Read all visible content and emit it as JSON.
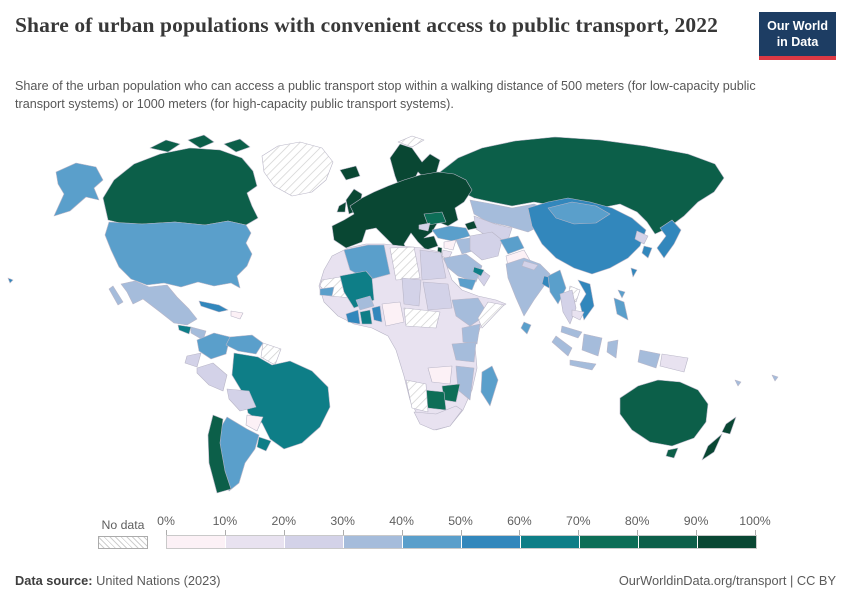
{
  "header": {
    "title": "Share of urban populations with convenient access to public transport, 2022",
    "logo": {
      "line1": "Our World",
      "line2": "in Data",
      "bg_color": "#1d3d63",
      "stripe_color": "#dc3944"
    }
  },
  "subtitle": "Share of the urban population who can access a public transport stop within a walking distance of 500 meters (for low-capacity public transport systems) or 1000 meters (for high-capacity public transport systems).",
  "chart_data": {
    "type": "choropleth_map",
    "title": "Share of urban populations with convenient access to public transport",
    "year": "2022",
    "unit": "% of urban population",
    "legend": {
      "no_data_label": "No data",
      "no_data_hatch_color": "#cfcfcf",
      "tick_labels": [
        "0%",
        "10%",
        "20%",
        "30%",
        "40%",
        "50%",
        "60%",
        "70%",
        "80%",
        "90%",
        "100%"
      ],
      "bins": [
        {
          "range": "0-10%",
          "color": "#fcf1f6"
        },
        {
          "range": "10-20%",
          "color": "#e8e2f0"
        },
        {
          "range": "20-30%",
          "color": "#d3d2e8"
        },
        {
          "range": "30-40%",
          "color": "#a5bcdb"
        },
        {
          "range": "40-50%",
          "color": "#5a9fcb"
        },
        {
          "range": "50-60%",
          "color": "#3287bc"
        },
        {
          "range": "60-70%",
          "color": "#0e7e87"
        },
        {
          "range": "70-80%",
          "color": "#0d6e57"
        },
        {
          "range": "80-90%",
          "color": "#0c5f49"
        },
        {
          "range": "90-100%",
          "color": "#094733"
        }
      ]
    },
    "regions": [
      {
        "id": "canada",
        "name": "Canada",
        "value": "80-90%",
        "bin": 8
      },
      {
        "id": "greenland",
        "name": "Greenland",
        "value": "No data",
        "bin": "no_data"
      },
      {
        "id": "alaska",
        "name": "Alaska (United States)",
        "value": "40-50%",
        "bin": 4
      },
      {
        "id": "united-states",
        "name": "United States",
        "value": "40-50%",
        "bin": 4
      },
      {
        "id": "mexico",
        "name": "Mexico",
        "value": "30-40%",
        "bin": 3
      },
      {
        "id": "guatemala",
        "name": "Guatemala",
        "value": "60-70%",
        "bin": 6
      },
      {
        "id": "honduras-nicaragua",
        "name": "Honduras / Nicaragua",
        "value": "30-40%",
        "bin": 3
      },
      {
        "id": "costa-rica-panama",
        "name": "Costa Rica / Panama",
        "value": "40-50%",
        "bin": 4
      },
      {
        "id": "cuba",
        "name": "Cuba",
        "value": "50-60%",
        "bin": 5
      },
      {
        "id": "hispaniola",
        "name": "Hispaniola",
        "value": "0-10%",
        "bin": 0
      },
      {
        "id": "colombia",
        "name": "Colombia",
        "value": "40-50%",
        "bin": 4
      },
      {
        "id": "venezuela",
        "name": "Venezuela",
        "value": "40-50%",
        "bin": 4
      },
      {
        "id": "guianas",
        "name": "Guyana / Suriname",
        "value": "No data",
        "bin": "no_data"
      },
      {
        "id": "ecuador",
        "name": "Ecuador",
        "value": "20-30%",
        "bin": 2
      },
      {
        "id": "peru",
        "name": "Peru",
        "value": "20-30%",
        "bin": 2
      },
      {
        "id": "brazil",
        "name": "Brazil",
        "value": "60-70%",
        "bin": 6
      },
      {
        "id": "bolivia",
        "name": "Bolivia",
        "value": "20-30%",
        "bin": 2
      },
      {
        "id": "paraguay",
        "name": "Paraguay",
        "value": "0-10%",
        "bin": 0
      },
      {
        "id": "argentina",
        "name": "Argentina",
        "value": "40-50%",
        "bin": 4
      },
      {
        "id": "chile",
        "name": "Chile",
        "value": "80-90%",
        "bin": 8
      },
      {
        "id": "uruguay",
        "name": "Uruguay",
        "value": "60-70%",
        "bin": 6
      },
      {
        "id": "iceland",
        "name": "Iceland",
        "value": "90-100%",
        "bin": 9
      },
      {
        "id": "united-kingdom",
        "name": "United Kingdom",
        "value": "90-100%",
        "bin": 9
      },
      {
        "id": "ireland",
        "name": "Ireland",
        "value": "90-100%",
        "bin": 9
      },
      {
        "id": "scandinavia",
        "name": "Norway / Sweden / Finland",
        "value": "90-100%",
        "bin": 9
      },
      {
        "id": "svalbard",
        "name": "Svalbard",
        "value": "No data",
        "bin": "no_data"
      },
      {
        "id": "europe",
        "name": "Western & Central Europe",
        "value": "90-100%",
        "bin": 9
      },
      {
        "id": "romania-bulgaria",
        "name": "Romania",
        "value": "70-80%",
        "bin": 7
      },
      {
        "id": "balkans-patch",
        "name": "Albania / North Macedonia",
        "value": "20-30%",
        "bin": 2
      },
      {
        "id": "russia",
        "name": "Russia",
        "value": "80-90%",
        "bin": 8
      },
      {
        "id": "turkey",
        "name": "Turkey",
        "value": "40-50%",
        "bin": 4
      },
      {
        "id": "azerbaijan",
        "name": "Azerbaijan",
        "value": "90-100%",
        "bin": 9
      },
      {
        "id": "kazakhstan",
        "name": "Kazakhstan",
        "value": "30-40%",
        "bin": 3
      },
      {
        "id": "central-asia",
        "name": "Uzbekistan / Turkmenistan",
        "value": "20-30%",
        "bin": 2
      },
      {
        "id": "iran",
        "name": "Iran",
        "value": "20-30%",
        "bin": 2
      },
      {
        "id": "afghanistan",
        "name": "Afghanistan",
        "value": "40-50%",
        "bin": 4
      },
      {
        "id": "pakistan",
        "name": "Pakistan",
        "value": "0-10%",
        "bin": 0
      },
      {
        "id": "iraq",
        "name": "Iraq",
        "value": "30-40%",
        "bin": 3
      },
      {
        "id": "syria",
        "name": "Syria",
        "value": "0-10%",
        "bin": 0
      },
      {
        "id": "israel",
        "name": "Israel",
        "value": "90-100%",
        "bin": 9
      },
      {
        "id": "jordan",
        "name": "Jordan",
        "value": "10-20%",
        "bin": 1
      },
      {
        "id": "saudi-arabia",
        "name": "Saudi Arabia",
        "value": "30-40%",
        "bin": 3
      },
      {
        "id": "yemen",
        "name": "Yemen",
        "value": "40-50%",
        "bin": 4
      },
      {
        "id": "oman",
        "name": "Oman",
        "value": "20-30%",
        "bin": 2
      },
      {
        "id": "qatar-uae",
        "name": "Qatar / United Arab Emirates",
        "value": "60-70%",
        "bin": 6
      },
      {
        "id": "india",
        "name": "India",
        "value": "30-40%",
        "bin": 3
      },
      {
        "id": "nepal",
        "name": "Nepal",
        "value": "20-30%",
        "bin": 2
      },
      {
        "id": "sri-lanka",
        "name": "Sri Lanka",
        "value": "40-50%",
        "bin": 4
      },
      {
        "id": "bangladesh",
        "name": "Bangladesh",
        "value": "50-60%",
        "bin": 5
      },
      {
        "id": "china",
        "name": "China",
        "value": "50-60%",
        "bin": 5
      },
      {
        "id": "mongolia",
        "name": "Mongolia",
        "value": "40-50%",
        "bin": 4
      },
      {
        "id": "north-korea",
        "name": "North Korea",
        "value": "20-30%",
        "bin": 2
      },
      {
        "id": "south-korea",
        "name": "South Korea",
        "value": "50-60%",
        "bin": 5
      },
      {
        "id": "japan",
        "name": "Japan",
        "value": "50-60%",
        "bin": 5
      },
      {
        "id": "taiwan",
        "name": "Taiwan",
        "value": "50-60%",
        "bin": 5
      },
      {
        "id": "myanmar",
        "name": "Myanmar",
        "value": "40-50%",
        "bin": 4
      },
      {
        "id": "laos",
        "name": "Laos",
        "value": "No data",
        "bin": "no_data"
      },
      {
        "id": "thailand",
        "name": "Thailand",
        "value": "20-30%",
        "bin": 2
      },
      {
        "id": "vietnam",
        "name": "Vietnam",
        "value": "50-60%",
        "bin": 5
      },
      {
        "id": "cambodia",
        "name": "Cambodia",
        "value": "10-20%",
        "bin": 1
      },
      {
        "id": "malaysia",
        "name": "Malaysia",
        "value": "30-40%",
        "bin": 3
      },
      {
        "id": "indonesia",
        "name": "Indonesia",
        "value": "30-40%",
        "bin": 3
      },
      {
        "id": "philippines",
        "name": "Philippines",
        "value": "40-50%",
        "bin": 4
      },
      {
        "id": "papua-new-guinea",
        "name": "Papua New Guinea",
        "value": "10-20%",
        "bin": 1
      },
      {
        "id": "pacific-islands",
        "name": "Pacific islands",
        "value": "30-40%",
        "bin": 3
      },
      {
        "id": "hawaii",
        "name": "Hawaii (United States)",
        "value": "50-60%",
        "bin": 5
      },
      {
        "id": "africa-base",
        "name": "Central Africa (Niger, DR Congo, Angola region)",
        "value": "10-20%",
        "bin": 1
      },
      {
        "id": "algeria",
        "name": "Algeria",
        "value": "40-50%",
        "bin": 4
      },
      {
        "id": "libya",
        "name": "Libya",
        "value": "No data",
        "bin": "no_data"
      },
      {
        "id": "egypt",
        "name": "Egypt",
        "value": "20-30%",
        "bin": 2
      },
      {
        "id": "mauritania",
        "name": "Mauritania / Western Sahara",
        "value": "No data",
        "bin": "no_data"
      },
      {
        "id": "mali",
        "name": "Mali",
        "value": "60-70%",
        "bin": 6
      },
      {
        "id": "burkina-faso",
        "name": "Burkina Faso",
        "value": "30-40%",
        "bin": 3
      },
      {
        "id": "senegal",
        "name": "Senegal",
        "value": "40-50%",
        "bin": 4
      },
      {
        "id": "ivory-coast",
        "name": "Côte d'Ivoire",
        "value": "50-60%",
        "bin": 5
      },
      {
        "id": "ghana",
        "name": "Ghana",
        "value": "60-70%",
        "bin": 6
      },
      {
        "id": "togo-benin",
        "name": "Togo / Benin",
        "value": "50-60%",
        "bin": 5
      },
      {
        "id": "nigeria",
        "name": "Nigeria",
        "value": "0-10%",
        "bin": 0
      },
      {
        "id": "chad",
        "name": "Chad",
        "value": "20-30%",
        "bin": 2
      },
      {
        "id": "sudan",
        "name": "Sudan",
        "value": "20-30%",
        "bin": 2
      },
      {
        "id": "south-sudan-car",
        "name": "South Sudan / Central African Republic",
        "value": "No data",
        "bin": "no_data"
      },
      {
        "id": "ethiopia",
        "name": "Ethiopia",
        "value": "30-40%",
        "bin": 3
      },
      {
        "id": "somalia",
        "name": "Somalia",
        "value": "No data",
        "bin": "no_data"
      },
      {
        "id": "kenya",
        "name": "Kenya",
        "value": "30-40%",
        "bin": 3
      },
      {
        "id": "tanzania",
        "name": "Tanzania",
        "value": "30-40%",
        "bin": 3
      },
      {
        "id": "zambia",
        "name": "Zambia",
        "value": "0-10%",
        "bin": 0
      },
      {
        "id": "mozambique",
        "name": "Mozambique",
        "value": "30-40%",
        "bin": 3
      },
      {
        "id": "zimbabwe",
        "name": "Zimbabwe",
        "value": "70-80%",
        "bin": 7
      },
      {
        "id": "botswana",
        "name": "Botswana",
        "value": "70-80%",
        "bin": 7
      },
      {
        "id": "namibia",
        "name": "Namibia",
        "value": "No data",
        "bin": "no_data"
      },
      {
        "id": "south-africa",
        "name": "South Africa",
        "value": "10-20%",
        "bin": 1
      },
      {
        "id": "madagascar",
        "name": "Madagascar",
        "value": "40-50%",
        "bin": 4
      },
      {
        "id": "australia",
        "name": "Australia",
        "value": "80-90%",
        "bin": 8
      },
      {
        "id": "new-zealand",
        "name": "New Zealand",
        "value": "90-100%",
        "bin": 9
      }
    ]
  },
  "footer": {
    "source_label": "Data source:",
    "source": " United Nations (2023)",
    "credit": "OurWorldinData.org/transport | CC BY"
  }
}
